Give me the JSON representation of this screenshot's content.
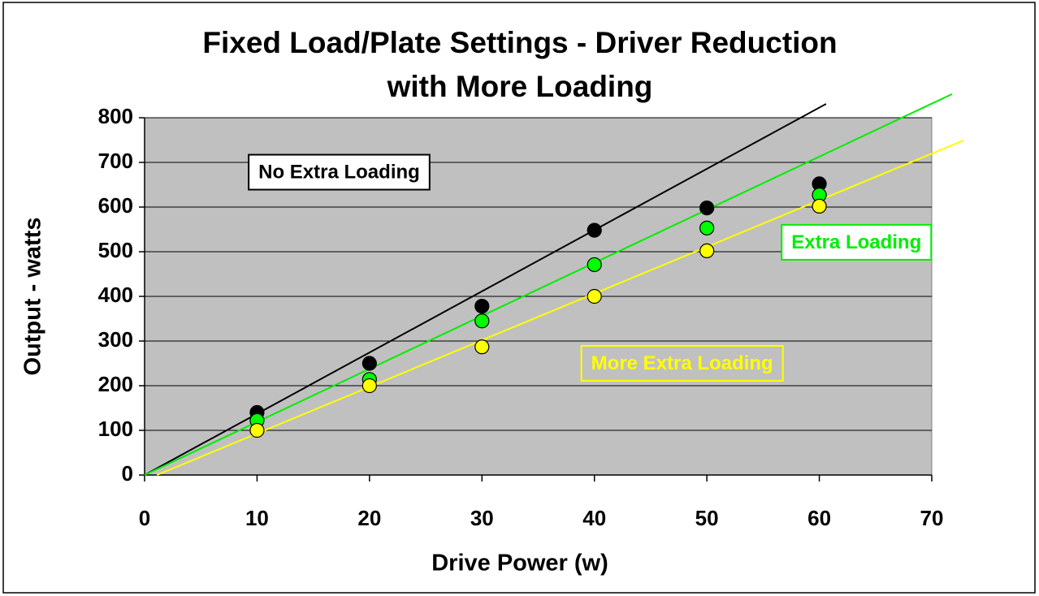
{
  "chart_data": {
    "type": "scatter",
    "title": [
      "Fixed Load/Plate Settings - Driver Reduction",
      "with More Loading"
    ],
    "x_label": "Drive Power (w)",
    "y_label": "Output - watts",
    "xlim": [
      0,
      70
    ],
    "xticks": [
      0,
      10,
      20,
      30,
      40,
      50,
      60,
      70
    ],
    "ylim": [
      0,
      800
    ],
    "yticks": [
      0,
      100,
      200,
      300,
      400,
      500,
      600,
      700,
      800
    ],
    "grid": true,
    "x": [
      10,
      20,
      30,
      40,
      50,
      60
    ],
    "series": [
      {
        "color": "#000000",
        "values": [
          140,
          250,
          378,
          548,
          598,
          652
        ]
      },
      {
        "color": "#00ff00",
        "values": [
          122,
          214,
          345,
          471,
          553,
          627
        ]
      },
      {
        "color": "#ffff00",
        "values": [
          100,
          200,
          287,
          400,
          502,
          602
        ]
      }
    ],
    "trendlines": [
      {
        "color": "#000000",
        "x": [
          0,
          60.6
        ],
        "values": [
          0,
          831
        ]
      },
      {
        "color": "#00ee00",
        "x": [
          0,
          71.8
        ],
        "values": [
          0,
          853
        ]
      },
      {
        "color": "#ffff00",
        "x": [
          1.1,
          72.8
        ],
        "values": [
          0,
          749
        ]
      }
    ],
    "annotations": [
      {
        "text": "No Extra Loading",
        "color": "#000000",
        "border": "#000000",
        "background": "#ffffff",
        "x": 17.3,
        "y": 676
      },
      {
        "text": "Extra Loading",
        "color": "#00ee00",
        "border": "#00ee00",
        "background": "#ffffff",
        "x": 63.3,
        "y": 519
      },
      {
        "text": "More Extra Loading",
        "color": "#ffff00",
        "border": "#ffff00",
        "background": "#c0c0c0",
        "x": 47.8,
        "y": 248
      }
    ]
  }
}
